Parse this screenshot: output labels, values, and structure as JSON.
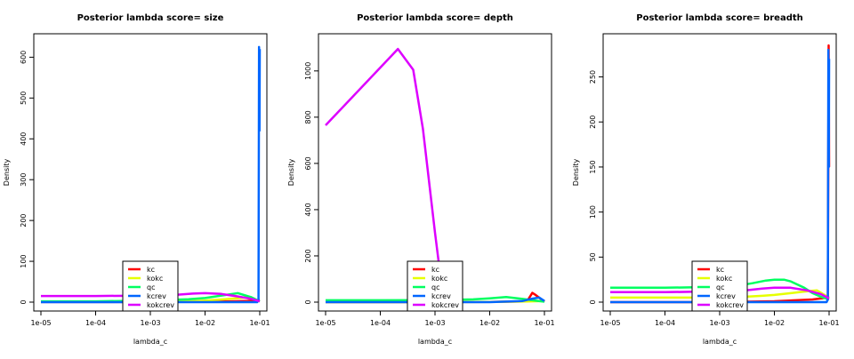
{
  "chart_data": [
    {
      "type": "line",
      "title": "Posterior lambda score= size",
      "xlabel": "lambda_c",
      "ylabel": "Density",
      "x_scale": "log",
      "xlim": [
        1e-05,
        0.1
      ],
      "ylim": [
        0,
        640
      ],
      "x_ticks": [
        "1e-05",
        "1e-04",
        "1e-03",
        "1e-02",
        "1e-01"
      ],
      "y_ticks": [
        0,
        100,
        200,
        300,
        400,
        500,
        600
      ],
      "legend": "bottom-left",
      "series": [
        {
          "name": "kc",
          "color": "#ff0000",
          "x": [
            1e-05,
            0.0001,
            0.001,
            0.01,
            0.03,
            0.06,
            0.095,
            0.1
          ],
          "y": [
            0.3,
            0.3,
            0.5,
            1,
            2,
            3,
            5,
            5
          ]
        },
        {
          "name": "kokc",
          "color": "#e6ff00",
          "x": [
            1e-05,
            0.0001,
            0.001,
            0.005,
            0.01,
            0.03,
            0.06,
            0.1
          ],
          "y": [
            0.5,
            0.5,
            1,
            2,
            4,
            8,
            12,
            2
          ]
        },
        {
          "name": "qc",
          "color": "#00ff60",
          "x": [
            1e-05,
            0.0001,
            0.001,
            0.005,
            0.01,
            0.025,
            0.04,
            0.07,
            0.1
          ],
          "y": [
            2,
            2,
            4,
            7,
            10,
            18,
            22,
            12,
            2
          ]
        },
        {
          "name": "kcrev",
          "color": "#0066ff",
          "x": [
            1e-05,
            0.001,
            0.01,
            0.05,
            0.09,
            0.095,
            0.097,
            0.099,
            0.1
          ],
          "y": [
            0,
            0,
            0,
            0,
            0,
            5,
            625,
            420,
            620
          ]
        },
        {
          "name": "kokcrev",
          "color": "#dd00ff",
          "x": [
            1e-05,
            0.0001,
            0.001,
            0.003,
            0.006,
            0.01,
            0.02,
            0.04,
            0.07,
            0.1
          ],
          "y": [
            15,
            15,
            16,
            18,
            21,
            22,
            20,
            14,
            8,
            2
          ]
        }
      ]
    },
    {
      "type": "line",
      "title": "Posterior lambda score= depth",
      "xlabel": "lambda_c",
      "ylabel": "Density",
      "x_scale": "log",
      "xlim": [
        1e-05,
        0.1
      ],
      "ylim": [
        0,
        1130
      ],
      "x_ticks": [
        "1e-05",
        "1e-04",
        "1e-03",
        "1e-02",
        "1e-01"
      ],
      "y_ticks": [
        0,
        200,
        400,
        600,
        800,
        1000
      ],
      "legend": "bottom-left",
      "series": [
        {
          "name": "kc",
          "color": "#ff0000",
          "x": [
            1e-05,
            0.001,
            0.01,
            0.04,
            0.05,
            0.06,
            0.07,
            0.1
          ],
          "y": [
            0,
            0,
            1,
            3,
            10,
            40,
            30,
            2
          ]
        },
        {
          "name": "kokc",
          "color": "#e6ff00",
          "x": [
            1e-05,
            0.001,
            0.01,
            0.05,
            0.1
          ],
          "y": [
            0,
            0,
            1,
            3,
            5
          ]
        },
        {
          "name": "qc",
          "color": "#00ff60",
          "x": [
            1e-05,
            0.0001,
            0.001,
            0.005,
            0.01,
            0.02,
            0.04,
            0.07,
            0.1
          ],
          "y": [
            8,
            8,
            9,
            12,
            16,
            22,
            14,
            6,
            2
          ]
        },
        {
          "name": "kcrev",
          "color": "#0066ff",
          "x": [
            1e-05,
            0.001,
            0.01,
            0.04,
            0.06,
            0.08,
            0.1
          ],
          "y": [
            0,
            0,
            0,
            5,
            15,
            20,
            5
          ]
        },
        {
          "name": "kokcrev",
          "color": "#dd00ff",
          "x": [
            1e-05,
            0.00021,
            0.0004,
            0.0006,
            0.001,
            0.0012
          ],
          "y": [
            765,
            1095,
            1005,
            750,
            300,
            150
          ]
        }
      ]
    },
    {
      "type": "line",
      "title": "Posterior lambda score= breadth",
      "xlabel": "lambda_c",
      "ylabel": "Density",
      "x_scale": "log",
      "xlim": [
        1e-05,
        0.1
      ],
      "ylim": [
        0,
        290
      ],
      "x_ticks": [
        "1e-05",
        "1e-04",
        "1e-03",
        "1e-02",
        "1e-01"
      ],
      "y_ticks": [
        0,
        50,
        100,
        150,
        200,
        250
      ],
      "legend": "bottom-left",
      "series": [
        {
          "name": "kc",
          "color": "#ff0000",
          "x": [
            1e-05,
            0.001,
            0.01,
            0.05,
            0.095,
            0.098,
            0.1
          ],
          "y": [
            0,
            0,
            1,
            3,
            5,
            285,
            150
          ]
        },
        {
          "name": "kokc",
          "color": "#e6ff00",
          "x": [
            1e-05,
            0.0001,
            0.001,
            0.003,
            0.006,
            0.01,
            0.02,
            0.04,
            0.06,
            0.1
          ],
          "y": [
            5,
            5,
            5,
            6,
            7,
            8,
            10,
            12,
            13,
            5
          ]
        },
        {
          "name": "qc",
          "color": "#00ff60",
          "x": [
            1e-05,
            0.0001,
            0.001,
            0.002,
            0.004,
            0.007,
            0.01,
            0.015,
            0.02,
            0.035,
            0.05,
            0.07,
            0.1
          ],
          "y": [
            16,
            16,
            17,
            18,
            21,
            24,
            25,
            25,
            23,
            16,
            10,
            6,
            3
          ]
        },
        {
          "name": "kcrev",
          "color": "#0066ff",
          "x": [
            1e-05,
            0.001,
            0.01,
            0.05,
            0.09,
            0.095,
            0.097,
            0.099,
            0.1
          ],
          "y": [
            0,
            0,
            0,
            0,
            0,
            3,
            280,
            150,
            270
          ]
        },
        {
          "name": "kokcrev",
          "color": "#dd00ff",
          "x": [
            1e-05,
            0.0001,
            0.001,
            0.003,
            0.006,
            0.01,
            0.02,
            0.04,
            0.07,
            0.1
          ],
          "y": [
            11,
            11,
            12,
            13,
            15,
            16,
            16,
            13,
            9,
            4
          ]
        }
      ]
    }
  ]
}
